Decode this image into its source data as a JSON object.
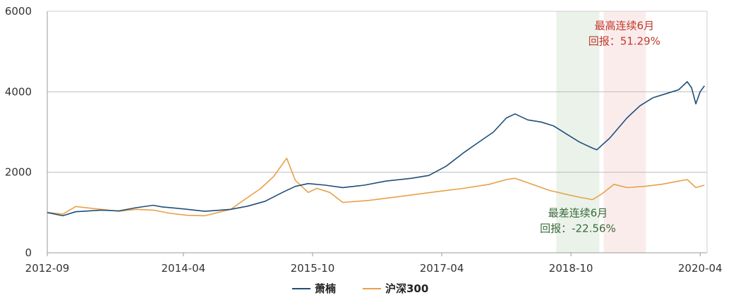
{
  "chart_data": {
    "type": "line",
    "title": "",
    "xlabel": "",
    "ylabel": "",
    "ylim": [
      0,
      6000
    ],
    "yticks": [
      0,
      2000,
      4000,
      6000
    ],
    "xlim": [
      2012.67,
      2020.33
    ],
    "xticks": [
      {
        "label": "2012-09",
        "value": 2012.67
      },
      {
        "label": "2014-04",
        "value": 2014.25
      },
      {
        "label": "2015-10",
        "value": 2015.75
      },
      {
        "label": "2017-04",
        "value": 2017.25
      },
      {
        "label": "2018-10",
        "value": 2018.75
      },
      {
        "label": "2020-04",
        "value": 2020.25
      }
    ],
    "grid": "horizontal",
    "legend_position": "bottom-center",
    "series": [
      {
        "name": "萧楠",
        "color": "#1f4e79",
        "points": [
          [
            2012.67,
            1000
          ],
          [
            2012.85,
            920
          ],
          [
            2013.0,
            1020
          ],
          [
            2013.3,
            1060
          ],
          [
            2013.5,
            1040
          ],
          [
            2013.7,
            1120
          ],
          [
            2013.9,
            1180
          ],
          [
            2014.0,
            1140
          ],
          [
            2014.25,
            1090
          ],
          [
            2014.5,
            1030
          ],
          [
            2014.8,
            1080
          ],
          [
            2015.0,
            1160
          ],
          [
            2015.2,
            1280
          ],
          [
            2015.4,
            1500
          ],
          [
            2015.55,
            1650
          ],
          [
            2015.7,
            1720
          ],
          [
            2015.9,
            1680
          ],
          [
            2016.1,
            1620
          ],
          [
            2016.35,
            1680
          ],
          [
            2016.6,
            1780
          ],
          [
            2016.9,
            1850
          ],
          [
            2017.1,
            1920
          ],
          [
            2017.3,
            2150
          ],
          [
            2017.5,
            2480
          ],
          [
            2017.7,
            2780
          ],
          [
            2017.85,
            3000
          ],
          [
            2018.0,
            3350
          ],
          [
            2018.1,
            3450
          ],
          [
            2018.25,
            3300
          ],
          [
            2018.4,
            3250
          ],
          [
            2018.55,
            3150
          ],
          [
            2018.7,
            2950
          ],
          [
            2018.85,
            2750
          ],
          [
            2019.0,
            2600
          ],
          [
            2019.05,
            2560
          ],
          [
            2019.2,
            2850
          ],
          [
            2019.4,
            3350
          ],
          [
            2019.55,
            3650
          ],
          [
            2019.7,
            3850
          ],
          [
            2019.85,
            3950
          ],
          [
            2020.0,
            4050
          ],
          [
            2020.1,
            4250
          ],
          [
            2020.15,
            4100
          ],
          [
            2020.2,
            3700
          ],
          [
            2020.25,
            4000
          ],
          [
            2020.3,
            4150
          ]
        ]
      },
      {
        "name": "沪深300",
        "color": "#e8a048",
        "points": [
          [
            2012.67,
            1000
          ],
          [
            2012.85,
            960
          ],
          [
            2013.0,
            1150
          ],
          [
            2013.2,
            1100
          ],
          [
            2013.5,
            1030
          ],
          [
            2013.7,
            1080
          ],
          [
            2013.9,
            1060
          ],
          [
            2014.1,
            980
          ],
          [
            2014.3,
            930
          ],
          [
            2014.5,
            920
          ],
          [
            2014.8,
            1080
          ],
          [
            2015.0,
            1380
          ],
          [
            2015.15,
            1600
          ],
          [
            2015.3,
            1900
          ],
          [
            2015.45,
            2350
          ],
          [
            2015.55,
            1800
          ],
          [
            2015.7,
            1500
          ],
          [
            2015.8,
            1600
          ],
          [
            2015.95,
            1500
          ],
          [
            2016.1,
            1250
          ],
          [
            2016.4,
            1300
          ],
          [
            2016.7,
            1380
          ],
          [
            2016.95,
            1450
          ],
          [
            2017.2,
            1520
          ],
          [
            2017.5,
            1600
          ],
          [
            2017.8,
            1700
          ],
          [
            2018.0,
            1820
          ],
          [
            2018.1,
            1850
          ],
          [
            2018.3,
            1700
          ],
          [
            2018.5,
            1550
          ],
          [
            2018.7,
            1450
          ],
          [
            2018.85,
            1380
          ],
          [
            2019.0,
            1320
          ],
          [
            2019.1,
            1450
          ],
          [
            2019.25,
            1700
          ],
          [
            2019.4,
            1620
          ],
          [
            2019.6,
            1650
          ],
          [
            2019.8,
            1700
          ],
          [
            2020.0,
            1780
          ],
          [
            2020.1,
            1820
          ],
          [
            2020.2,
            1620
          ],
          [
            2020.3,
            1680
          ]
        ]
      }
    ],
    "shaded_regions": [
      {
        "name": "worst",
        "x_start": 2018.58,
        "x_end": 2019.08,
        "color": "#eaf2ea"
      },
      {
        "name": "best",
        "x_start": 2019.13,
        "x_end": 2019.62,
        "color": "#fbecec"
      }
    ],
    "annotations": [
      {
        "name": "best",
        "line1": "最高连续6月",
        "line2": "回报：51.29%",
        "color": "#c0392b",
        "x": 2019.37,
        "y": 5550
      },
      {
        "name": "worst",
        "line1": "最差连续6月",
        "line2": "回报：-22.56%",
        "color": "#3a6b3a",
        "x": 2018.83,
        "y": 900
      }
    ]
  }
}
